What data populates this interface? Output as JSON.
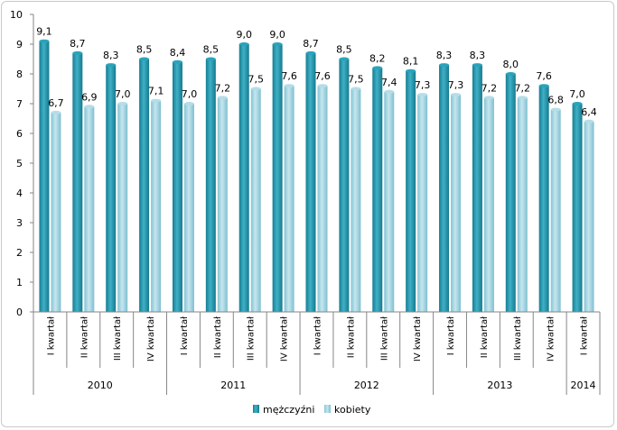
{
  "chart_data": {
    "type": "bar",
    "ylim": [
      0,
      10
    ],
    "yticks": [
      "0",
      "1",
      "2",
      "3",
      "4",
      "5",
      "6",
      "7",
      "8",
      "9",
      "10"
    ],
    "groups": [
      {
        "year": "2010",
        "quarters": [
          "I kwartał",
          "II kwartał",
          "III kwartał",
          "IV kwartał"
        ]
      },
      {
        "year": "2011",
        "quarters": [
          "I kwartał",
          "II kwartał",
          "III kwartał",
          "IV kwartał"
        ]
      },
      {
        "year": "2012",
        "quarters": [
          "I kwartał",
          "II kwartał",
          "III kwartał",
          "IV kwartał"
        ]
      },
      {
        "year": "2013",
        "quarters": [
          "I kwartał",
          "II kwartał",
          "III kwartał",
          "IV kwartał"
        ]
      },
      {
        "year": "2014",
        "quarters": [
          "I kwartał"
        ]
      }
    ],
    "series": [
      {
        "name": "mężczyźni",
        "color": "#1f8fa6",
        "values": [
          9.1,
          8.7,
          8.3,
          8.5,
          8.4,
          8.5,
          9.0,
          9.0,
          8.7,
          8.5,
          8.2,
          8.1,
          8.3,
          8.3,
          8.0,
          7.6,
          7.0
        ],
        "labels": [
          "9,1",
          "8,7",
          "8,3",
          "8,5",
          "8,4",
          "8,5",
          "9,0",
          "9,0",
          "8,7",
          "8,5",
          "8,2",
          "8,1",
          "8,3",
          "8,3",
          "8,0",
          "7,6",
          "7,0"
        ]
      },
      {
        "name": "kobiety",
        "color": "#92cddc",
        "values": [
          6.7,
          6.9,
          7.0,
          7.1,
          7.0,
          7.2,
          7.5,
          7.6,
          7.6,
          7.5,
          7.4,
          7.3,
          7.3,
          7.2,
          7.2,
          6.8,
          6.4
        ],
        "labels": [
          "6,7",
          "6,9",
          "7,0",
          "7,1",
          "7,0",
          "7,2",
          "7,5",
          "7,6",
          "7,6",
          "7,5",
          "7,4",
          "7,3",
          "7,3",
          "7,2",
          "7,2",
          "6,8",
          "6,4"
        ]
      }
    ],
    "grid": false,
    "legend": "bottom"
  }
}
